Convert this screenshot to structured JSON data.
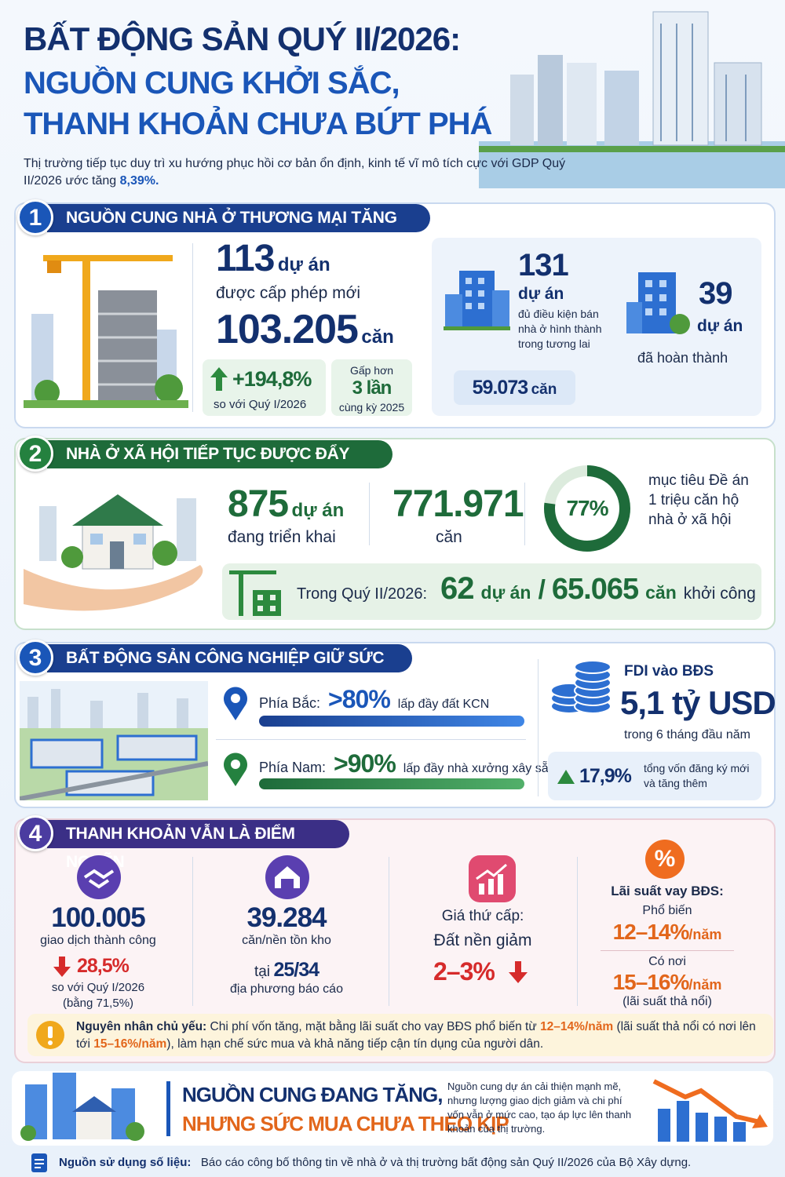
{
  "header": {
    "title_lines": [
      "BẤT ĐỘNG SẢN QUÝ II/2026:",
      "NGUỒN CUNG KHỞI SẮC,",
      "THANH KHOẢN CHƯA BỨT PHÁ"
    ],
    "intro": "Thị trường tiếp tục duy trì xu hướng phục hồi cơ bản ổn định, kinh tế vĩ mô tích cực với GDP Quý II/2026 ước tăng",
    "intro_highlight": "8,39%."
  },
  "section1": {
    "number": "1",
    "title": "NGUỒN CUNG NHÀ Ở THƯƠNG MẠI TĂNG MẠNH",
    "permits": {
      "projects": "113",
      "projects_unit": "dự án",
      "projects_desc": "được cấp phép mới",
      "units": "103.205",
      "units_unit": "căn",
      "growth": "+194,8%",
      "growth_desc": "so với Quý I/2026",
      "multiple_prefix": "Gấp hơn",
      "multiple": "3 lần",
      "multiple_desc": "cùng kỳ 2025"
    },
    "eligible": {
      "projects": "131",
      "unit": "dự án",
      "desc": "đủ điều kiện bán nhà ở hình thành trong tương lai",
      "units": "59.073",
      "units_unit": "căn"
    },
    "completed": {
      "projects": "39",
      "unit": "dự án",
      "desc": "đã hoàn thành"
    }
  },
  "section2": {
    "number": "2",
    "title": "NHÀ Ở XÃ HỘI TIẾP TỤC ĐƯỢC ĐẨY MẠNH",
    "projects": "875",
    "projects_unit": "dự án",
    "projects_desc": "đang triển khai",
    "units": "771.971",
    "units_unit": "căn",
    "progress": {
      "value": 77,
      "label": "77%"
    },
    "progress_desc": "mục tiêu Đề án 1 triệu căn hộ nhà ở xã hội",
    "started": {
      "label": "Trong Quý II/2026:",
      "projects": "62",
      "projects_unit": "dự án",
      "separator": "/",
      "units": "65.065",
      "units_unit": "căn",
      "desc": "khởi công"
    }
  },
  "section3": {
    "number": "3",
    "title": "BẤT ĐỘNG SẢN CÔNG NGHIỆP GIỮ SỨC HÚT",
    "regions": [
      {
        "name": "Phía Bắc:",
        "rate": ">80%",
        "desc": "lấp đầy đất KCN"
      },
      {
        "name": "Phía Nam:",
        "rate": ">90%",
        "desc": "lấp đầy nhà xưởng xây sẵn"
      }
    ],
    "fdi": {
      "label": "FDI vào BĐS",
      "amount": "5,1 tỷ USD",
      "period": "trong 6 tháng đầu năm",
      "growth": "17,9%",
      "growth_desc": "tổng vốn đăng ký mới và tăng thêm"
    }
  },
  "section4": {
    "number": "4",
    "title": "THANH KHOẢN VẪN LÀ ĐIỂM NGHẼN",
    "transactions": {
      "value": "100.005",
      "desc": "giao dịch thành công",
      "change": "28,5%",
      "change_desc": "so với Quý I/2026",
      "ratio": "(bằng 71,5%)"
    },
    "inventory": {
      "value": "39.284",
      "desc": "căn/nền tồn kho",
      "prefix": "tại",
      "localities": "25/34",
      "localities_desc": "địa phương báo cáo"
    },
    "secondary_price": {
      "label": "Giá thứ cấp:",
      "desc": "Đất nền giảm",
      "change": "2–3%"
    },
    "interest": {
      "icon": "%",
      "label": "Lãi suất vay BĐS:",
      "common_label": "Phổ biến",
      "common_rate": "12–14%",
      "common_unit": "/năm",
      "max_label": "Có nơi",
      "max_rate": "15–16%",
      "max_unit": "/năm",
      "note": "(lãi suất thả nổi)"
    },
    "cause": {
      "label": "Nguyên nhân chủ yếu:",
      "text1": "Chi phí vốn tăng, mặt bằng lãi suất cho vay BĐS phổ biến từ",
      "rate1": "12–14%/năm",
      "text2": "(lãi suất thả nổi có nơi lên tới",
      "rate2": "15–16%/năm",
      "text3": "), làm hạn chế sức mua và khả năng tiếp cận tín dụng của người dân."
    }
  },
  "conclusion": {
    "headline1": "NGUỒN CUNG ĐANG TĂNG,",
    "headline2": "NHƯNG SỨC MUA CHƯA THEO KỊP",
    "text": "Nguồn cung dự án cải thiện mạnh mẽ, nhưng lượng giao dịch giảm và chi phí vốn vẫn ở mức cao, tạo áp lực lên thanh khoản của thị trường."
  },
  "footer": {
    "label": "Nguồn sử dụng số liệu:",
    "text": "Báo cáo công bố thông tin về nhà ở và thị trường bất động sản Quý II/2026 của Bộ Xây dựng."
  }
}
